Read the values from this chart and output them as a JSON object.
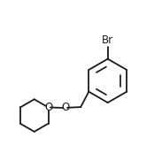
{
  "background_color": "#ffffff",
  "line_color": "#1a1a1a",
  "line_width": 1.3,
  "font_size_br": 8.5,
  "font_size_o": 8.5,
  "br_label": "Br",
  "o_label1": "O",
  "o_label2": "O"
}
